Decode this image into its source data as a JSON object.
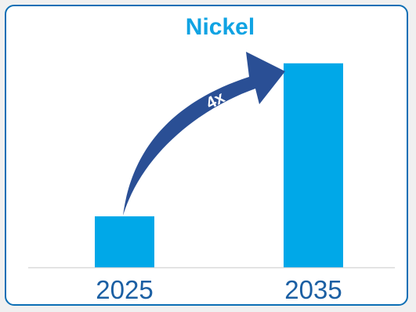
{
  "chart_data": {
    "type": "bar",
    "title": "Nickel",
    "categories": [
      "2025",
      "2035"
    ],
    "values": [
      1,
      4
    ],
    "ylim": [
      0,
      4.15
    ],
    "grid": false,
    "annotation": {
      "text": "4x",
      "from_category": "2025",
      "to_category": "2035"
    }
  },
  "colors": {
    "bar": "#00a8e8",
    "title": "#10a3e3",
    "tick": "#1b5fa3",
    "arrow": "#2a4f95",
    "arrow_label": "#ffffff",
    "border": "#0c6fb5",
    "baseline": "#d9d9d9"
  }
}
